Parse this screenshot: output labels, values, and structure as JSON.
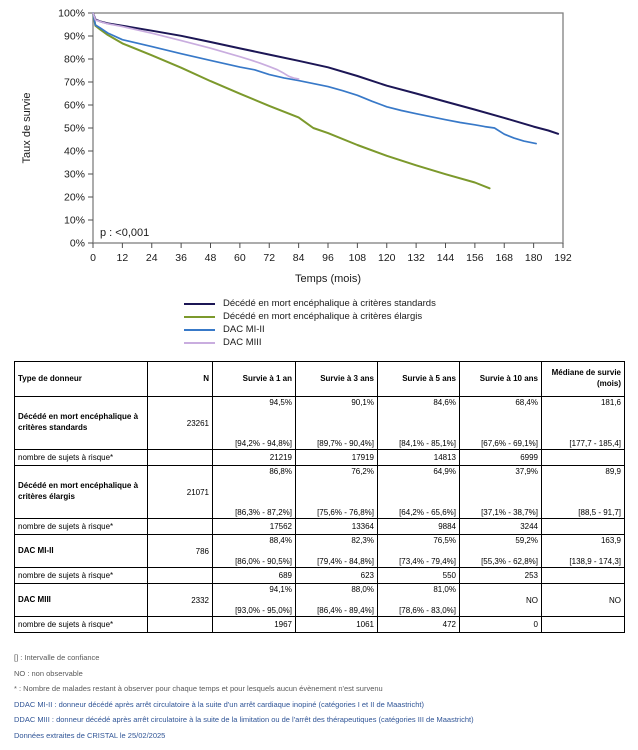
{
  "chart_data": {
    "type": "line",
    "title": "",
    "xlabel": "Temps (mois)",
    "ylabel": "Taux de survie",
    "p_value_label": "p : <0,001",
    "xlim": [
      0,
      192
    ],
    "ylim": [
      0,
      100
    ],
    "xticks": [
      0,
      12,
      24,
      36,
      48,
      60,
      72,
      84,
      96,
      108,
      120,
      132,
      144,
      156,
      168,
      180,
      192
    ],
    "yticks": [
      0,
      10,
      20,
      30,
      40,
      50,
      60,
      70,
      80,
      90,
      100
    ],
    "ytick_suffix": "%",
    "grid": false,
    "legend_position": "bottom",
    "series": [
      {
        "name": "Décédé en mort encéphalique à critères standards",
        "color": "#1C1655",
        "width": 2,
        "x": [
          0,
          1,
          3,
          6,
          12,
          24,
          36,
          48,
          60,
          72,
          84,
          96,
          108,
          120,
          132,
          144,
          156,
          168,
          180,
          186,
          190
        ],
        "y": [
          100,
          97.2,
          96.3,
          95.5,
          94.5,
          92.3,
          90.1,
          87.4,
          84.6,
          81.9,
          79.2,
          76.4,
          72.6,
          68.4,
          65.0,
          61.5,
          58.0,
          54.4,
          50.6,
          48.9,
          47.5
        ]
      },
      {
        "name": "Décédé en mort encéphalique à critères élargis",
        "color": "#7C992C",
        "width": 2,
        "x": [
          0,
          1,
          3,
          6,
          12,
          24,
          36,
          48,
          60,
          72,
          84,
          90,
          96,
          108,
          120,
          132,
          144,
          156,
          162
        ],
        "y": [
          100,
          94.5,
          92.8,
          90.5,
          86.8,
          81.6,
          76.2,
          70.4,
          64.9,
          59.6,
          54.6,
          50.0,
          47.8,
          42.6,
          37.9,
          33.8,
          29.9,
          26.3,
          23.8
        ]
      },
      {
        "name": "DAC MI-II",
        "color": "#3879C8",
        "width": 1.7,
        "x": [
          0,
          1,
          3,
          6,
          12,
          24,
          36,
          48,
          60,
          66,
          72,
          78,
          84,
          90,
          96,
          102,
          108,
          114,
          120,
          126,
          132,
          138,
          144,
          150,
          156,
          160,
          164,
          168,
          172,
          176,
          181
        ],
        "y": [
          100,
          94.8,
          93.5,
          91.3,
          88.4,
          85.4,
          82.3,
          79.4,
          76.5,
          75.3,
          73.2,
          71.8,
          70.6,
          69.3,
          68.0,
          66.2,
          64.2,
          61.6,
          59.2,
          57.6,
          56.2,
          54.9,
          53.6,
          52.4,
          51.4,
          50.6,
          50.0,
          47.3,
          45.6,
          44.3,
          43.2
        ]
      },
      {
        "name": "DAC MIII",
        "color": "#C9ADDF",
        "width": 1.7,
        "x": [
          0,
          1,
          3,
          6,
          12,
          24,
          36,
          48,
          60,
          64,
          68,
          72,
          75,
          78,
          80,
          82,
          84
        ],
        "y": [
          100,
          97.0,
          96.2,
          95.3,
          94.1,
          91.2,
          88.0,
          84.7,
          81.0,
          79.7,
          78.3,
          76.7,
          75.5,
          73.8,
          72.5,
          71.7,
          71.3
        ]
      }
    ]
  },
  "table": {
    "columns": [
      "Type de donneur",
      "N",
      "Survie à 1 an",
      "Survie à 3 ans",
      "Survie à 5 ans",
      "Survie à 10 ans",
      "Médiane de survie (mois)"
    ],
    "groups": [
      {
        "name": "Décédé en mort encéphalique à critères standards",
        "tall": true,
        "n": "23261",
        "stats": [
          {
            "value": "94,5%",
            "ci": "[94,2% - 94,8%]"
          },
          {
            "value": "90,1%",
            "ci": "[89,7% - 90,4%]"
          },
          {
            "value": "84,6%",
            "ci": "[84,1% - 85,1%]"
          },
          {
            "value": "68,4%",
            "ci": "[67,6% - 69,1%]"
          },
          {
            "value": "181,6",
            "ci": "[177,7 - 185,4]"
          }
        ],
        "risk_label": "nombre de sujets à risque*",
        "risk": [
          "21219",
          "17919",
          "14813",
          "6999",
          ""
        ]
      },
      {
        "name": "Décédé en mort encéphalique à critères élargis",
        "tall": true,
        "n": "21071",
        "stats": [
          {
            "value": "86,8%",
            "ci": "[86,3% - 87,2%]"
          },
          {
            "value": "76,2%",
            "ci": "[75,6% - 76,8%]"
          },
          {
            "value": "64,9%",
            "ci": "[64,2% - 65,6%]"
          },
          {
            "value": "37,9%",
            "ci": "[37,1% - 38,7%]"
          },
          {
            "value": "89,9",
            "ci": "[88,5 - 91,7]"
          }
        ],
        "risk_label": "nombre de sujets à risque*",
        "risk": [
          "17562",
          "13364",
          "9884",
          "3244",
          ""
        ]
      },
      {
        "name": "DAC MI-II",
        "tall": false,
        "n": "786",
        "stats": [
          {
            "value": "88,4%",
            "ci": "[86,0% - 90,5%]"
          },
          {
            "value": "82,3%",
            "ci": "[79,4% - 84,8%]"
          },
          {
            "value": "76,5%",
            "ci": "[73,4% - 79,4%]"
          },
          {
            "value": "59,2%",
            "ci": "[55,3% - 62,8%]"
          },
          {
            "value": "163,9",
            "ci": "[138,9 - 174,3]"
          }
        ],
        "risk_label": "nombre de sujets à risque*",
        "risk": [
          "689",
          "623",
          "550",
          "253",
          ""
        ]
      },
      {
        "name": "DAC MIII",
        "tall": false,
        "n": "2332",
        "stats": [
          {
            "value": "94,1%",
            "ci": "[93,0% - 95,0%]"
          },
          {
            "value": "88,0%",
            "ci": "[86,4% - 89,4%]"
          },
          {
            "value": "81,0%",
            "ci": "[78,6% - 83,0%]"
          },
          {
            "value": "NO",
            "ci": ""
          },
          {
            "value": "NO",
            "ci": ""
          }
        ],
        "risk_label": "nombre de sujets à risque*",
        "risk": [
          "1967",
          "1061",
          "472",
          "0",
          ""
        ]
      }
    ]
  },
  "footnotes": [
    {
      "text": "[] : Intervalle de confiance",
      "accent": false
    },
    {
      "text": "NO : non observable",
      "accent": false
    },
    {
      "text": "* : Nombre de malades restant à observer pour chaque temps et pour lesquels aucun évènement n'est survenu",
      "accent": false
    },
    {
      "text": "DDAC MI-II : donneur décédé après arrêt circulatoire à la suite d'un arrêt cardiaque inopiné (catégories I et II de Maastricht)",
      "accent": true
    },
    {
      "text": "DDAC MIII : donneur décédé après arrêt circulatoire à la suite de la limitation ou de l'arrêt des thérapeutiques (catégories III de Maastricht)",
      "accent": true
    },
    {
      "text": "Données extraites de CRISTAL le 25/02/2025",
      "accent": true
    }
  ],
  "colors": {
    "plot_border": "#808080",
    "tick": "#4d4d4d",
    "footnote_gray": "#595959",
    "footnote_blue": "#2F5496"
  }
}
